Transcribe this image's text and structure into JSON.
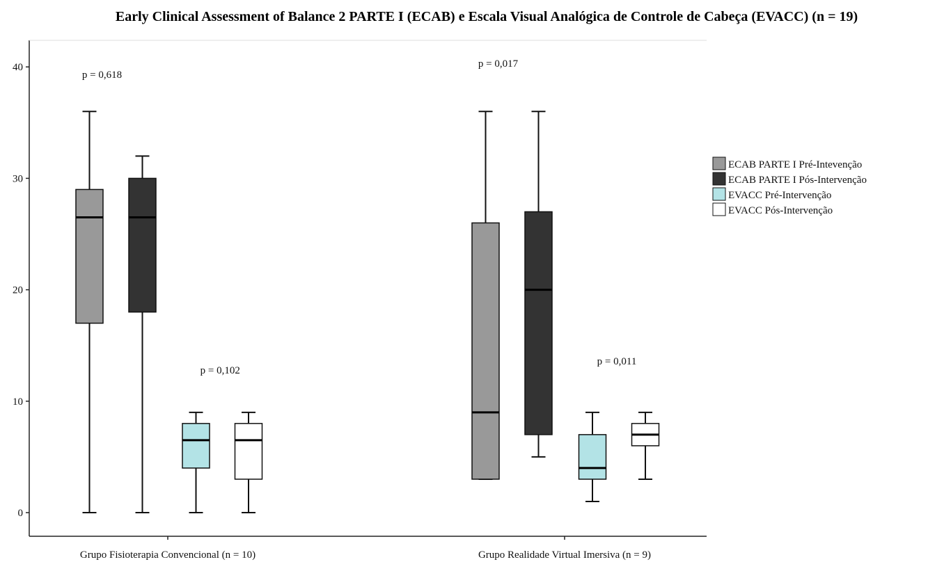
{
  "chart_data": {
    "type": "boxplot",
    "title": "Early Clinical Assessment of Balance 2 PARTE I (ECAB) e  Escala Visual Analógica de Controle de Cabeça (EVACC) (n = 19)",
    "xlabel": "",
    "ylabel": "",
    "ylim": [
      -2.2,
      42.5
    ],
    "yticks": [
      0,
      10,
      20,
      30,
      40
    ],
    "grid": false,
    "legend_position": "right",
    "categories": [
      "Grupo Fisioterapia Convencional (n = 10)",
      "Grupo Realidade Virtual Imersiva (n = 9)"
    ],
    "series": [
      {
        "name": "ECAB PARTE I Pré-Intevenção",
        "color": "#999999",
        "boxes": [
          {
            "min": 0,
            "q1": 17,
            "median": 26.5,
            "q3": 29,
            "max": 36
          },
          {
            "min": 3,
            "q1": 3,
            "median": 9,
            "q3": 26,
            "max": 36
          }
        ]
      },
      {
        "name": "ECAB PARTE I Pós-Intervenção",
        "color": "#333333",
        "boxes": [
          {
            "min": 0,
            "q1": 18,
            "median": 26.5,
            "q3": 30,
            "max": 32
          },
          {
            "min": 5,
            "q1": 7,
            "median": 20,
            "q3": 27,
            "max": 36
          }
        ]
      },
      {
        "name": "EVACC Pré-Intervenção",
        "color": "#b3e3e6",
        "boxes": [
          {
            "min": 0,
            "q1": 4,
            "median": 6.5,
            "q3": 8,
            "max": 9
          },
          {
            "min": 1,
            "q1": 3,
            "median": 4,
            "q3": 7,
            "max": 9
          }
        ]
      },
      {
        "name": "EVACC Pós-Intervenção",
        "color": "#ffffff",
        "boxes": [
          {
            "min": 0,
            "q1": 3,
            "median": 6.5,
            "q3": 8,
            "max": 9
          },
          {
            "min": 3,
            "q1": 6,
            "median": 7,
            "q3": 8,
            "max": 9
          }
        ]
      }
    ],
    "annotations": [
      {
        "text": "p = 0,618",
        "category": 0,
        "pair": "ECAB",
        "y": 39
      },
      {
        "text": "p = 0,102",
        "category": 0,
        "pair": "EVACC",
        "y": 12.5
      },
      {
        "text": "p = 0,017",
        "category": 1,
        "pair": "ECAB",
        "y": 40
      },
      {
        "text": "p = 0,011",
        "category": 1,
        "pair": "EVACC",
        "y": 13.3
      }
    ]
  }
}
